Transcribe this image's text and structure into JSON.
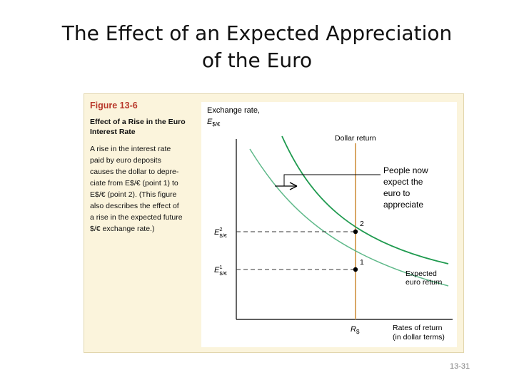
{
  "slide": {
    "title_line1": "The Effect of an Expected Appreciation",
    "title_line2": "of the Euro",
    "number": "13-31"
  },
  "figure": {
    "number": "Figure 13-6",
    "title_line1": "Effect of a Rise in the Euro",
    "title_line2": "Interest Rate",
    "description": [
      "A rise in the interest rate",
      "paid by euro deposits",
      "causes the dollar to depre-",
      "ciate from E$/€ (point 1) to",
      "E$/€ (point 2). (This figure",
      "also describes the effect of",
      "a rise in the expected future",
      "$/€ exchange rate.)"
    ]
  },
  "graph": {
    "y_axis_label_line1": "Exchange rate,",
    "y_axis_label_main": "E",
    "y_axis_label_sub": "$/€",
    "x_axis_label_line1": "Rates of return",
    "x_axis_label_line2": "(in dollar terms)",
    "dollar_return_label": "Dollar return",
    "expected_return_line1": "Expected",
    "expected_return_line2": "euro return",
    "point1_label": "1",
    "point2_label": "2",
    "e1_main": "E",
    "e1_sup": "1",
    "e1_sub": "$/€",
    "e2_main": "E",
    "e2_sup": "2",
    "e2_sub": "$/€",
    "r_main": "R",
    "r_sub": "$",
    "annotation_lines": [
      "People now",
      "expect the",
      "euro to",
      "appreciate"
    ]
  },
  "colors": {
    "new_curve": "#1f9a4f",
    "old_curve": "#5fb98a",
    "dollar_return_line": "#d9a766",
    "figure_number": "#b8372a",
    "panel_background": "#fbf4dc"
  }
}
